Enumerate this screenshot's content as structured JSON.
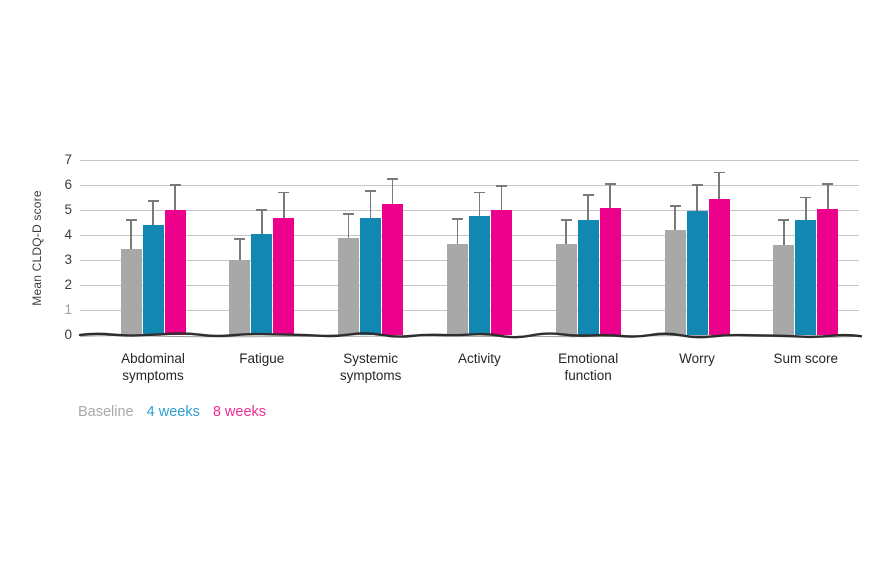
{
  "chart_data": {
    "type": "bar",
    "title": "",
    "xlabel": "",
    "ylabel": "Mean CLDQ-D score",
    "ylim": [
      0,
      7
    ],
    "yticks": [
      0,
      1,
      2,
      3,
      4,
      5,
      6,
      7
    ],
    "grid": true,
    "legend_position": "bottom-left",
    "categories": [
      "Abdominal symptoms",
      "Fatigue",
      "Systemic symptoms",
      "Activity",
      "Emotional function",
      "Worry",
      "Sum score"
    ],
    "series": [
      {
        "name": "Baseline",
        "color": "#a8a8a8",
        "values": [
          3.45,
          3.0,
          3.9,
          3.65,
          3.65,
          4.2,
          3.6
        ],
        "error_upper": [
          1.15,
          0.85,
          0.95,
          1.0,
          0.95,
          0.95,
          1.0
        ]
      },
      {
        "name": "4 weeks",
        "color": "#1287b2",
        "values": [
          4.4,
          4.05,
          4.7,
          4.75,
          4.6,
          4.95,
          4.6
        ],
        "error_upper": [
          0.95,
          0.95,
          1.05,
          0.95,
          1.0,
          1.05,
          0.9
        ]
      },
      {
        "name": "8 weeks",
        "color": "#ec008c",
        "values": [
          5.0,
          4.7,
          5.25,
          5.0,
          5.1,
          5.45,
          5.05
        ],
        "error_upper": [
          1.0,
          1.0,
          1.0,
          0.95,
          0.95,
          1.05,
          1.0
        ]
      }
    ]
  },
  "legend": {
    "items": [
      {
        "label": "Baseline",
        "color": "#a9a9a9"
      },
      {
        "label": "4 weeks",
        "color": "#2e9fd1"
      },
      {
        "label": "8 weeks",
        "color": "#ee2e96"
      }
    ]
  },
  "styles": {
    "gridline_color": "#c6c6c6",
    "error_bar_color": "#7a7a7a",
    "axis_line_color": "#2e2e2e",
    "tick_color": "#3d3d3d",
    "tick_color_light": "#a0a0a0"
  }
}
